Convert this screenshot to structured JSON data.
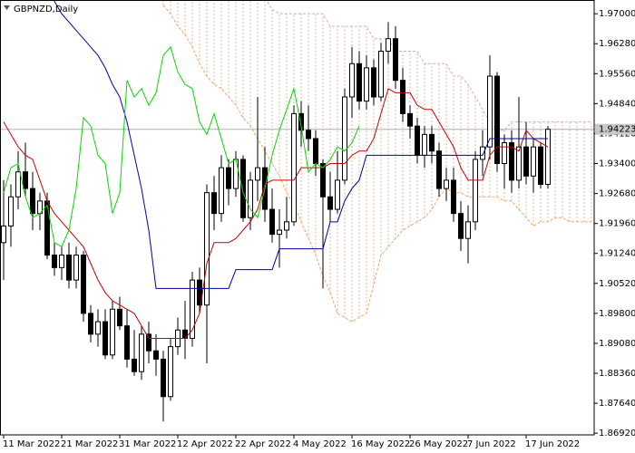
{
  "chart_data": {
    "type": "candlestick",
    "title": "GBPNZD,Daily",
    "categories": [
      "11 Mar 2022",
      null,
      null,
      null,
      null,
      null,
      null,
      null,
      "21 Mar 2022",
      null,
      null,
      null,
      null,
      null,
      null,
      null,
      "31 Mar 2022",
      null,
      null,
      null,
      null,
      null,
      null,
      null,
      "12 Apr 2022",
      null,
      null,
      null,
      null,
      null,
      null,
      null,
      "22 Apr 2022",
      null,
      null,
      null,
      null,
      null,
      null,
      null,
      "4 May 2022",
      null,
      null,
      null,
      null,
      null,
      null,
      null,
      "16 May 2022",
      null,
      null,
      null,
      null,
      null,
      null,
      null,
      "26 May 2022",
      null,
      null,
      null,
      null,
      null,
      null,
      null,
      "7 Jun 2022",
      null,
      null,
      null,
      null,
      null,
      null,
      null,
      "17 Jun 2022",
      null,
      null,
      null,
      null,
      null,
      null,
      null,
      null,
      null
    ],
    "open": [
      1.915,
      1.919,
      1.926,
      1.932,
      1.928,
      1.922,
      1.925,
      1.912,
      1.909,
      1.912,
      1.906,
      1.912,
      1.898,
      1.893,
      1.896,
      1.888,
      1.899,
      1.895,
      1.887,
      1.884,
      1.893,
      1.889,
      1.887,
      1.878,
      1.89,
      1.894,
      1.892,
      1.906,
      1.9,
      1.927,
      1.922,
      1.933,
      1.928,
      1.935,
      1.921,
      1.93,
      1.933,
      1.923,
      1.917,
      1.918,
      1.92,
      1.946,
      1.942,
      1.94,
      1.934,
      1.926,
      1.923,
      1.93,
      1.95,
      1.958,
      1.949,
      1.957,
      1.95,
      1.961,
      1.964,
      1.954,
      1.946,
      1.943,
      1.936,
      1.941,
      1.937,
      1.928,
      1.93,
      1.922,
      1.916,
      1.92,
      1.935,
      1.938,
      1.955,
      1.934,
      1.939,
      1.93,
      1.938,
      1.931,
      1.938,
      1.929,
      null,
      null,
      null,
      null,
      null,
      null
    ],
    "high": [
      1.93,
      1.929,
      1.937,
      1.939,
      1.932,
      1.927,
      1.927,
      1.915,
      1.914,
      1.915,
      1.914,
      1.913,
      1.9,
      1.899,
      1.899,
      1.901,
      1.902,
      1.899,
      1.894,
      1.895,
      1.896,
      1.893,
      1.889,
      1.892,
      1.897,
      1.901,
      1.908,
      1.909,
      1.929,
      1.931,
      1.936,
      1.935,
      1.937,
      1.936,
      1.932,
      1.95,
      1.938,
      1.928,
      1.923,
      1.926,
      1.948,
      1.949,
      1.948,
      1.942,
      1.935,
      1.932,
      1.937,
      1.952,
      1.962,
      1.961,
      1.96,
      1.959,
      1.963,
      1.968,
      1.967,
      1.957,
      1.948,
      1.945,
      1.943,
      1.943,
      1.939,
      1.933,
      1.933,
      1.925,
      1.924,
      1.937,
      1.942,
      1.96,
      1.956,
      1.941,
      1.942,
      1.95,
      1.944,
      1.94,
      1.939,
      1.943,
      null,
      null,
      null,
      null,
      null,
      null
    ],
    "low": [
      1.906,
      1.914,
      1.923,
      1.926,
      1.918,
      1.918,
      1.911,
      1.907,
      1.906,
      1.904,
      1.904,
      1.896,
      1.891,
      1.89,
      1.887,
      1.887,
      1.894,
      1.885,
      1.883,
      1.882,
      1.886,
      1.883,
      1.872,
      1.877,
      1.888,
      1.887,
      1.89,
      1.898,
      1.886,
      1.918,
      1.92,
      1.924,
      1.926,
      1.92,
      1.918,
      1.925,
      1.92,
      1.915,
      1.909,
      1.916,
      1.919,
      1.938,
      1.937,
      1.931,
      1.904,
      1.92,
      1.922,
      1.929,
      1.945,
      1.947,
      1.947,
      1.948,
      1.949,
      1.958,
      1.952,
      1.944,
      1.94,
      1.934,
      1.933,
      1.934,
      1.926,
      1.925,
      1.92,
      1.913,
      1.91,
      1.918,
      1.931,
      1.935,
      1.932,
      1.928,
      1.927,
      1.928,
      1.929,
      1.927,
      1.928,
      1.928,
      null,
      null,
      null,
      null,
      null,
      null
    ],
    "close": [
      1.919,
      1.926,
      1.932,
      1.928,
      1.922,
      1.925,
      1.912,
      1.909,
      1.912,
      1.906,
      1.912,
      1.898,
      1.893,
      1.896,
      1.888,
      1.899,
      1.895,
      1.887,
      1.884,
      1.893,
      1.889,
      1.887,
      1.878,
      1.89,
      1.894,
      1.892,
      1.906,
      1.9,
      1.927,
      1.922,
      1.933,
      1.928,
      1.935,
      1.921,
      1.93,
      1.933,
      1.923,
      1.917,
      1.918,
      1.92,
      1.946,
      1.942,
      1.94,
      1.934,
      1.926,
      1.923,
      1.93,
      1.95,
      1.958,
      1.949,
      1.957,
      1.95,
      1.961,
      1.964,
      1.954,
      1.946,
      1.943,
      1.936,
      1.941,
      1.937,
      1.928,
      1.93,
      1.922,
      1.916,
      1.92,
      1.935,
      1.938,
      1.955,
      1.934,
      1.939,
      1.93,
      1.938,
      1.931,
      1.938,
      1.929,
      1.94223,
      null,
      null,
      null,
      null,
      null,
      null
    ],
    "bull_color": "#ffffff",
    "bear_color": "#000000",
    "lines": [
      {
        "color": "#cc0000",
        "values": [
          1.944,
          1.941,
          1.938,
          1.936,
          1.935,
          1.93,
          1.925,
          1.922,
          1.92,
          1.918,
          1.916,
          1.914,
          1.91,
          1.906,
          1.903,
          1.901,
          1.9,
          1.899,
          1.898,
          1.895,
          1.892,
          1.892,
          1.892,
          1.892,
          1.892,
          1.892,
          1.894,
          1.898,
          1.91,
          1.915,
          1.915,
          1.915,
          1.916,
          1.918,
          1.92,
          1.923,
          1.929,
          1.93,
          1.93,
          1.93,
          1.93,
          1.933,
          1.933,
          1.933,
          1.933,
          1.934,
          1.934,
          1.934,
          1.936,
          1.937,
          1.937,
          1.94,
          1.946,
          1.952,
          1.951,
          1.951,
          1.951,
          1.948,
          1.947,
          1.947,
          1.944,
          1.941,
          1.938,
          1.933,
          1.93,
          1.93,
          1.93,
          1.936,
          1.938,
          1.938,
          1.938,
          1.937,
          1.942,
          1.94,
          1.939,
          1.938,
          null,
          null,
          null,
          null,
          null,
          null
        ]
      },
      {
        "color": "#0000aa",
        "values": [
          1.978,
          1.978,
          1.978,
          1.978,
          1.978,
          1.978,
          1.976,
          1.973,
          1.97,
          1.968,
          1.966,
          1.964,
          1.962,
          1.96,
          1.957,
          1.953,
          1.95,
          1.944,
          1.936,
          1.928,
          1.918,
          1.904,
          1.904,
          1.904,
          1.904,
          1.904,
          1.904,
          1.904,
          1.904,
          1.904,
          1.904,
          1.904,
          1.9085,
          1.9085,
          1.9085,
          1.9085,
          1.9085,
          1.9085,
          1.9135,
          1.9135,
          1.9135,
          1.9135,
          1.9135,
          1.9135,
          1.9135,
          1.92,
          1.92,
          1.925,
          1.928,
          1.93,
          1.936,
          1.936,
          1.936,
          1.936,
          1.936,
          1.936,
          1.936,
          1.936,
          1.936,
          1.936,
          1.936,
          1.936,
          1.936,
          1.936,
          1.936,
          1.936,
          1.936,
          1.94,
          1.94,
          1.94,
          1.94,
          1.94,
          1.94,
          1.94,
          1.94,
          1.94,
          null,
          null,
          null,
          null,
          null,
          null
        ]
      },
      {
        "color": "#00dd00",
        "values": [
          1.927,
          1.933,
          1.934,
          1.926,
          1.921,
          1.922,
          1.924,
          1.915,
          1.914,
          1.918,
          1.928,
          1.945,
          1.943,
          1.936,
          1.934,
          1.922,
          1.927,
          1.954,
          1.95,
          1.952,
          1.948,
          1.951,
          1.96,
          1.962,
          1.956,
          1.953,
          1.952,
          1.944,
          1.941,
          1.946,
          1.94,
          1.934,
          1.935,
          1.927,
          1.923,
          1.921,
          1.928,
          1.936,
          1.942,
          1.947,
          1.952,
          1.943,
          1.932,
          1.934,
          1.933,
          1.935,
          1.938,
          1.937,
          1.939,
          1.943,
          null,
          null,
          null,
          null,
          null,
          null,
          null,
          null,
          null,
          null,
          null,
          null,
          null,
          null,
          null,
          null,
          null,
          null,
          null,
          null,
          null,
          null,
          null,
          null,
          null,
          null,
          null,
          null,
          null,
          null,
          null,
          null
        ]
      }
    ],
    "spans": [
      {
        "color": "#f4a460",
        "values": [
          null,
          null,
          null,
          null,
          null,
          null,
          null,
          null,
          null,
          null,
          null,
          null,
          null,
          null,
          null,
          null,
          null,
          null,
          null,
          null,
          null,
          null,
          1.972,
          1.97,
          1.967,
          1.965,
          1.962,
          1.958,
          1.955,
          1.953,
          1.952,
          1.95,
          1.948,
          1.945,
          1.943,
          1.94,
          1.937,
          1.934,
          1.931,
          1.927,
          1.924,
          1.92,
          1.916,
          1.912,
          1.907,
          1.903,
          1.898,
          1.897,
          1.896,
          1.897,
          1.898,
          1.905,
          1.912,
          1.914,
          1.916,
          1.918,
          1.919,
          1.92,
          1.921,
          1.923,
          1.926,
          1.928,
          1.927,
          1.927,
          1.926,
          1.926,
          1.926,
          1.926,
          1.926,
          1.925,
          1.925,
          1.923,
          1.921,
          1.919,
          1.92,
          1.92,
          1.921,
          1.921,
          1.92,
          1.92,
          1.92,
          1.92
        ]
      },
      {
        "color": "#d8a8c8",
        "values": [
          null,
          null,
          null,
          null,
          null,
          null,
          null,
          null,
          null,
          null,
          null,
          null,
          null,
          null,
          null,
          null,
          null,
          null,
          null,
          null,
          null,
          null,
          1.978,
          1.978,
          1.978,
          1.978,
          1.978,
          1.978,
          1.978,
          1.978,
          1.978,
          1.978,
          1.978,
          1.978,
          1.978,
          1.978,
          1.974,
          1.971,
          1.97,
          1.97,
          1.97,
          1.97,
          1.97,
          1.97,
          1.97,
          1.967,
          1.967,
          1.967,
          1.967,
          1.967,
          1.967,
          1.964,
          1.964,
          1.964,
          1.961,
          1.961,
          1.961,
          1.961,
          1.958,
          1.958,
          1.958,
          1.958,
          1.955,
          1.955,
          1.953,
          1.95,
          1.947,
          1.944,
          1.942,
          1.942,
          1.944,
          1.944,
          1.944,
          1.944,
          1.944,
          1.944,
          1.944,
          1.944,
          1.944,
          1.944,
          1.944,
          1.944
        ]
      }
    ],
    "cloud_color": "#e2b49c",
    "ylim": [
      1.8688,
      1.9733
    ],
    "yticks": [
      {
        "value": 1.97,
        "label": "1.97000"
      },
      {
        "value": 1.9628,
        "label": "1.96280"
      },
      {
        "value": 1.9556,
        "label": "1.95560"
      },
      {
        "value": 1.9484,
        "label": "1.94840"
      },
      {
        "value": 1.9412,
        "label": "1.94120"
      },
      {
        "value": 1.934,
        "label": "1.93400"
      },
      {
        "value": 1.9268,
        "label": "1.92680"
      },
      {
        "value": 1.9196,
        "label": "1.91960"
      },
      {
        "value": 1.9124,
        "label": "1.91240"
      },
      {
        "value": 1.9052,
        "label": "1.90520"
      },
      {
        "value": 1.898,
        "label": "1.89800"
      },
      {
        "value": 1.8908,
        "label": "1.89080"
      },
      {
        "value": 1.8836,
        "label": "1.88360"
      },
      {
        "value": 1.8764,
        "label": "1.87640"
      },
      {
        "value": 1.8692,
        "label": "1.86920"
      }
    ],
    "bid": {
      "value": 1.94223,
      "label": "1.94223"
    }
  }
}
